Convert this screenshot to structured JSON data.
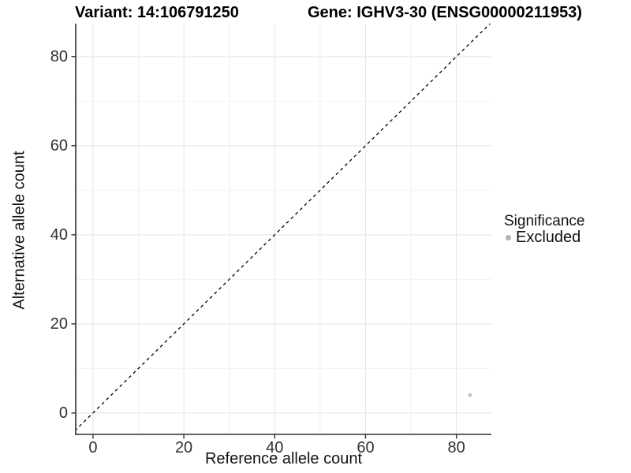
{
  "chart_data": {
    "type": "scatter",
    "titles": {
      "variant": "Variant: 14:106791250",
      "gene": "Gene: IGHV3-30 (ENSG00000211953)"
    },
    "xlabel": "Reference allele count",
    "ylabel": "Alternative allele count",
    "xlim": [
      -3.8,
      87.7
    ],
    "ylim": [
      -4.8,
      87.4
    ],
    "x_major_ticks": [
      0,
      20,
      40,
      60,
      80
    ],
    "y_major_ticks": [
      0,
      20,
      40,
      60,
      80
    ],
    "x_minor_gridlines": [
      10,
      30,
      50,
      70
    ],
    "y_minor_gridlines": [
      10,
      30,
      50,
      70
    ],
    "grid": true,
    "legend_position": "right",
    "identity_line": {
      "style": "dashed",
      "equation": "y = x",
      "from": -6,
      "to": 90,
      "color": "#000000"
    },
    "series": [
      {
        "name": "Excluded",
        "color": "#bfbfbf",
        "points": [
          {
            "x": 83,
            "y": 4
          }
        ]
      }
    ],
    "legend": {
      "title": "Significance",
      "items": [
        {
          "label": "Excluded",
          "color": "#b3b3b3"
        }
      ]
    },
    "colors": {
      "grid_major": "#e4e4e4",
      "grid_minor": "#f2f2f2",
      "axis_line": "#2f2f2f",
      "tick_mark": "#2f2f2f",
      "tick_label": "#303030",
      "background": "#ffffff"
    }
  }
}
